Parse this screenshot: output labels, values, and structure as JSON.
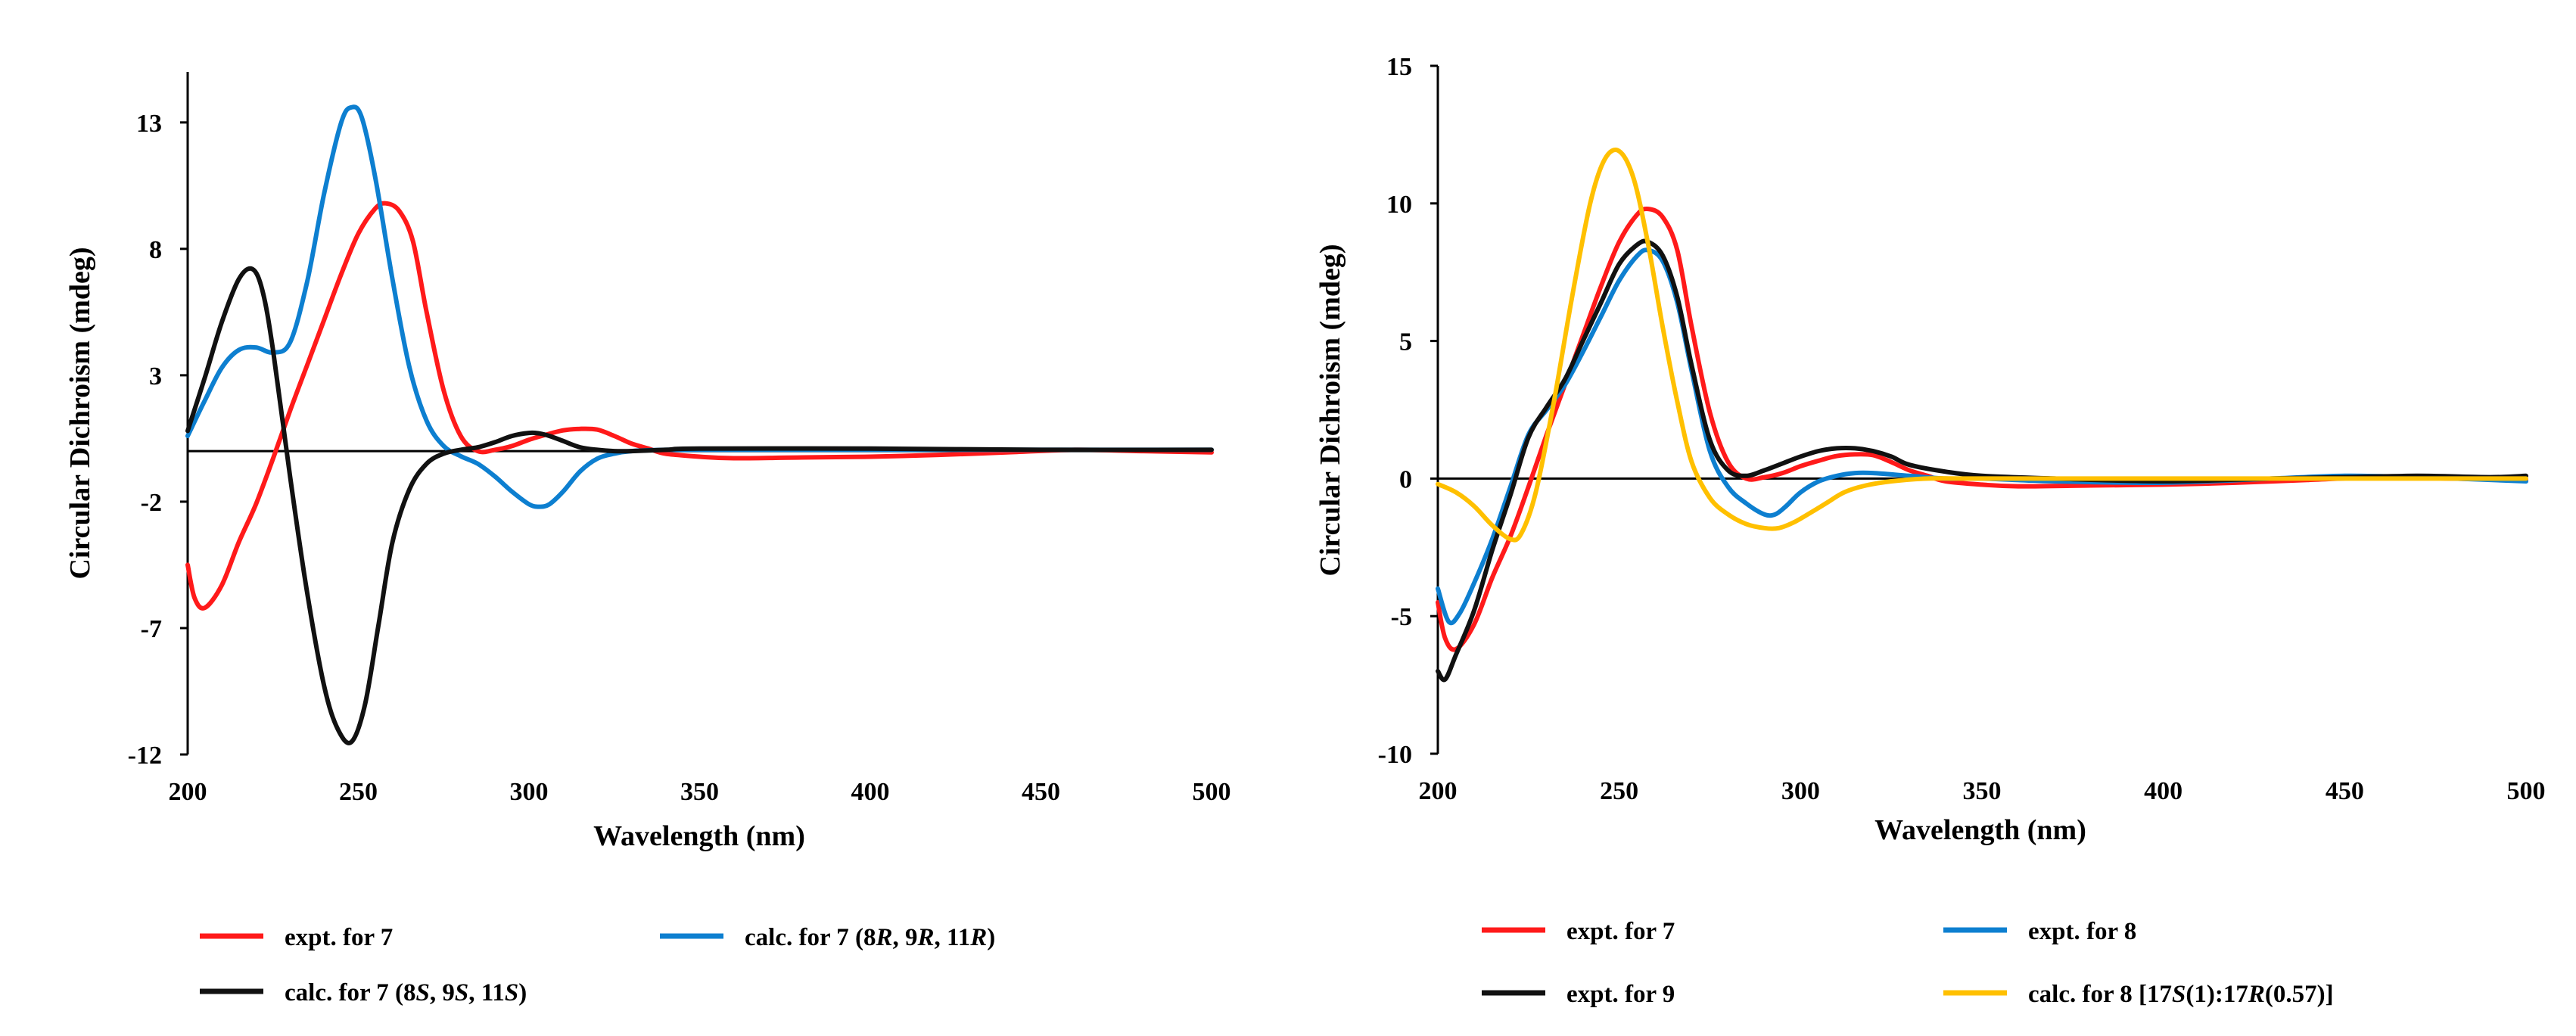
{
  "chart_data": [
    {
      "type": "line",
      "xlabel": "Wavelength (nm)",
      "ylabel": "Circular Dichroism (mdeg)",
      "xlim": [
        200,
        500
      ],
      "ylim": [
        -12,
        15
      ],
      "xticks": [
        200,
        250,
        300,
        350,
        400,
        450,
        500
      ],
      "yticks": [
        -12,
        -7,
        -2,
        3,
        8,
        13
      ],
      "xtick_labels": [
        "200",
        "250",
        "300",
        "350",
        "400",
        "450",
        "500"
      ],
      "ytick_labels": [
        "-12",
        "-7",
        "-2",
        "3",
        "8",
        "13"
      ],
      "zero_line": true,
      "grid": false,
      "legend_position": "bottom",
      "series": [
        {
          "name": "expt. for 7",
          "legend": [
            "expt. for 7"
          ],
          "color": "#ff1a1a",
          "x": [
            200,
            202,
            205,
            210,
            215,
            220,
            225,
            230,
            235,
            240,
            245,
            250,
            255,
            258,
            262,
            266,
            270,
            275,
            280,
            285,
            290,
            295,
            300,
            305,
            310,
            315,
            320,
            325,
            330,
            335,
            340,
            350,
            360,
            380,
            400,
            420,
            440,
            460,
            480,
            500
          ],
          "y": [
            -4.5,
            -5.8,
            -6.2,
            -5.3,
            -3.6,
            -2.1,
            -0.3,
            1.6,
            3.4,
            5.2,
            7.0,
            8.6,
            9.6,
            9.8,
            9.5,
            8.3,
            5.5,
            2.4,
            0.6,
            0.0,
            0.05,
            0.2,
            0.45,
            0.65,
            0.82,
            0.88,
            0.85,
            0.6,
            0.3,
            0.1,
            -0.1,
            -0.22,
            -0.28,
            -0.25,
            -0.22,
            -0.15,
            -0.05,
            0.05,
            0.0,
            -0.05
          ]
        },
        {
          "name": "calc. for 7 (8R, 9R, 11R)",
          "legend": [
            "calc. for 7 (8",
            "R",
            ", 9",
            "R",
            ", 11",
            "R",
            ")"
          ],
          "color": "#0d7fd0",
          "x": [
            200,
            205,
            210,
            215,
            220,
            225,
            230,
            235,
            240,
            245,
            248,
            251,
            255,
            260,
            265,
            270,
            275,
            280,
            285,
            290,
            295,
            300,
            303,
            306,
            310,
            315,
            320,
            325,
            330,
            340,
            350,
            400,
            450,
            500
          ],
          "y": [
            0.6,
            2.0,
            3.3,
            4.0,
            4.1,
            3.9,
            4.3,
            6.7,
            10.2,
            13.0,
            13.6,
            13.2,
            10.8,
            6.8,
            3.3,
            1.2,
            0.2,
            -0.2,
            -0.5,
            -1.0,
            -1.6,
            -2.1,
            -2.2,
            -2.1,
            -1.6,
            -0.8,
            -0.3,
            -0.1,
            0.0,
            0.05,
            0.05,
            0.05,
            0.05,
            0.05
          ]
        },
        {
          "name": "calc. for 7 (8S, 9S, 11S)",
          "legend": [
            "calc. for 7 (8",
            "S",
            ", 9",
            "S",
            ", 11",
            "S",
            ")"
          ],
          "color": "#111111",
          "x": [
            200,
            205,
            210,
            215,
            219,
            222,
            225,
            230,
            235,
            240,
            244,
            248,
            252,
            256,
            260,
            265,
            270,
            275,
            280,
            285,
            290,
            295,
            300,
            303,
            306,
            310,
            315,
            320,
            325,
            330,
            340,
            350,
            400,
            450,
            500
          ],
          "y": [
            0.8,
            2.9,
            5.1,
            6.8,
            7.2,
            6.3,
            4.0,
            -1.0,
            -5.6,
            -9.3,
            -11.0,
            -11.5,
            -10.0,
            -6.8,
            -3.6,
            -1.5,
            -0.5,
            -0.1,
            0.05,
            0.15,
            0.35,
            0.6,
            0.72,
            0.7,
            0.6,
            0.4,
            0.15,
            0.05,
            0.0,
            0.0,
            0.05,
            0.1,
            0.1,
            0.05,
            0.05
          ]
        }
      ]
    },
    {
      "type": "line",
      "xlabel": "Wavelength (nm)",
      "ylabel": "Circular Dichroism (mdeg)",
      "xlim": [
        200,
        500
      ],
      "ylim": [
        -10,
        15
      ],
      "xticks": [
        200,
        250,
        300,
        350,
        400,
        450,
        500
      ],
      "yticks": [
        -10,
        -5,
        0,
        5,
        10,
        15
      ],
      "xtick_labels": [
        "200",
        "250",
        "300",
        "350",
        "400",
        "450",
        "500"
      ],
      "ytick_labels": [
        "-10",
        "-5",
        "0",
        "5",
        "10",
        "15"
      ],
      "zero_line": true,
      "grid": false,
      "legend_position": "bottom",
      "series": [
        {
          "name": "expt. for 7",
          "legend": [
            "expt. for 7"
          ],
          "color": "#ff1a1a",
          "x": [
            200,
            202,
            205,
            210,
            215,
            220,
            225,
            230,
            235,
            240,
            245,
            250,
            255,
            258,
            262,
            266,
            270,
            275,
            280,
            285,
            290,
            295,
            300,
            305,
            310,
            315,
            320,
            325,
            330,
            335,
            340,
            350,
            360,
            380,
            400,
            420,
            440,
            460,
            480,
            500
          ],
          "y": [
            -4.5,
            -5.8,
            -6.2,
            -5.3,
            -3.6,
            -2.1,
            -0.3,
            1.6,
            3.4,
            5.2,
            7.0,
            8.6,
            9.6,
            9.8,
            9.5,
            8.3,
            5.5,
            2.4,
            0.6,
            0.0,
            0.05,
            0.2,
            0.45,
            0.65,
            0.82,
            0.88,
            0.85,
            0.6,
            0.3,
            0.1,
            -0.1,
            -0.22,
            -0.28,
            -0.25,
            -0.22,
            -0.15,
            -0.05,
            0.05,
            0.0,
            -0.05
          ]
        },
        {
          "name": "expt. for 8",
          "legend": [
            "expt. for 8"
          ],
          "color": "#0d7fd0",
          "x": [
            200,
            203,
            206,
            210,
            215,
            220,
            225,
            230,
            235,
            240,
            245,
            250,
            255,
            258,
            262,
            266,
            270,
            275,
            280,
            285,
            290,
            293,
            296,
            300,
            305,
            310,
            315,
            320,
            330,
            340,
            350,
            370,
            400,
            430,
            450,
            470,
            500
          ],
          "y": [
            -4.0,
            -5.2,
            -4.9,
            -3.8,
            -2.2,
            -0.3,
            1.6,
            2.5,
            3.4,
            4.6,
            5.9,
            7.2,
            8.1,
            8.3,
            7.9,
            6.4,
            3.9,
            1.0,
            -0.3,
            -0.9,
            -1.3,
            -1.3,
            -1.0,
            -0.5,
            -0.1,
            0.1,
            0.2,
            0.2,
            0.1,
            0.0,
            0.0,
            -0.1,
            -0.15,
            0.0,
            0.1,
            0.05,
            -0.1
          ]
        },
        {
          "name": "expt. for 9",
          "legend": [
            "expt. for 9"
          ],
          "color": "#111111",
          "x": [
            200,
            202,
            205,
            210,
            215,
            220,
            225,
            230,
            235,
            240,
            245,
            250,
            255,
            258,
            262,
            266,
            270,
            275,
            280,
            285,
            290,
            295,
            300,
            305,
            310,
            315,
            320,
            325,
            330,
            340,
            350,
            370,
            400,
            430,
            450,
            470,
            490,
            500
          ],
          "y": [
            -7.0,
            -7.3,
            -6.4,
            -4.8,
            -2.6,
            -0.6,
            1.5,
            2.6,
            3.6,
            5.0,
            6.4,
            7.8,
            8.5,
            8.6,
            8.1,
            6.6,
            4.1,
            1.4,
            0.3,
            0.1,
            0.3,
            0.55,
            0.8,
            1.0,
            1.1,
            1.1,
            1.0,
            0.8,
            0.5,
            0.25,
            0.1,
            0.0,
            -0.1,
            0.0,
            0.05,
            0.1,
            0.05,
            0.1
          ]
        },
        {
          "name": "calc. for 8 [17S(1):17R(0.57)]",
          "legend": [
            "calc. for 8 [17",
            "S",
            "(1):17",
            "R",
            "(0.57)]"
          ],
          "color": "#ffc000",
          "x": [
            200,
            205,
            210,
            215,
            220,
            223,
            227,
            232,
            237,
            242,
            246,
            250,
            254,
            258,
            262,
            266,
            270,
            275,
            280,
            285,
            290,
            294,
            298,
            302,
            307,
            312,
            318,
            325,
            335,
            350,
            400,
            450,
            470,
            500
          ],
          "y": [
            -0.2,
            -0.5,
            -1.0,
            -1.7,
            -2.2,
            -2.0,
            -0.5,
            2.8,
            6.6,
            10.0,
            11.6,
            11.9,
            10.9,
            8.5,
            5.5,
            2.8,
            0.6,
            -0.7,
            -1.3,
            -1.65,
            -1.8,
            -1.8,
            -1.6,
            -1.3,
            -0.9,
            -0.5,
            -0.25,
            -0.1,
            0.0,
            0.0,
            0.0,
            0.0,
            0.0,
            0.0
          ]
        }
      ]
    }
  ]
}
